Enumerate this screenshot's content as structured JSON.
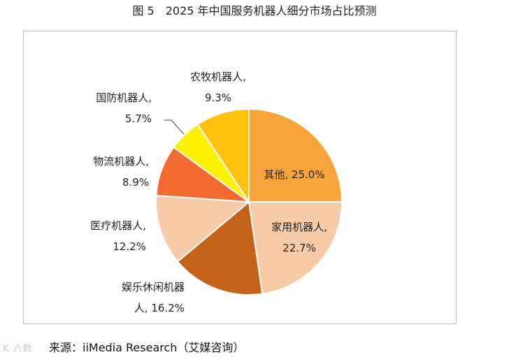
{
  "title": "图 5　2025 年中国服务机器人细分市场占比预测",
  "source": "来源：iiMedia Research（艾媒咨询）",
  "watermark": "K 六数",
  "chart_data": {
    "type": "pie",
    "unit": "%",
    "start_angle_deg": 0,
    "direction": "clockwise",
    "slices": [
      {
        "name": "其他",
        "value": 25.0,
        "label": "其他, 25.0%",
        "label_inside": true,
        "color": "#F7A43B"
      },
      {
        "name": "家用机器人",
        "value": 22.7,
        "label": "家用机器人,\n22.7%",
        "label_inside": true,
        "color": "#F7CBA8"
      },
      {
        "name": "娱乐休闲机器人",
        "value": 16.2,
        "label": "娱乐休闲机器\n人, 16.2%",
        "label_inside": false,
        "color": "#C4621A"
      },
      {
        "name": "医疗机器人",
        "value": 12.2,
        "label": "医疗机器人,\n12.2%",
        "label_inside": false,
        "color": "#F7CBA8"
      },
      {
        "name": "物流机器人",
        "value": 8.9,
        "label": "物流机器人,\n8.9%",
        "label_inside": false,
        "color": "#F26A30"
      },
      {
        "name": "国防机器人",
        "value": 5.7,
        "label": "国防机器人,\n5.7%",
        "label_inside": false,
        "color": "#FFF200"
      },
      {
        "name": "农牧机器人",
        "value": 9.3,
        "label": "农牧机器人,\n9.3%",
        "label_inside": false,
        "color": "#FFC20E"
      }
    ]
  }
}
